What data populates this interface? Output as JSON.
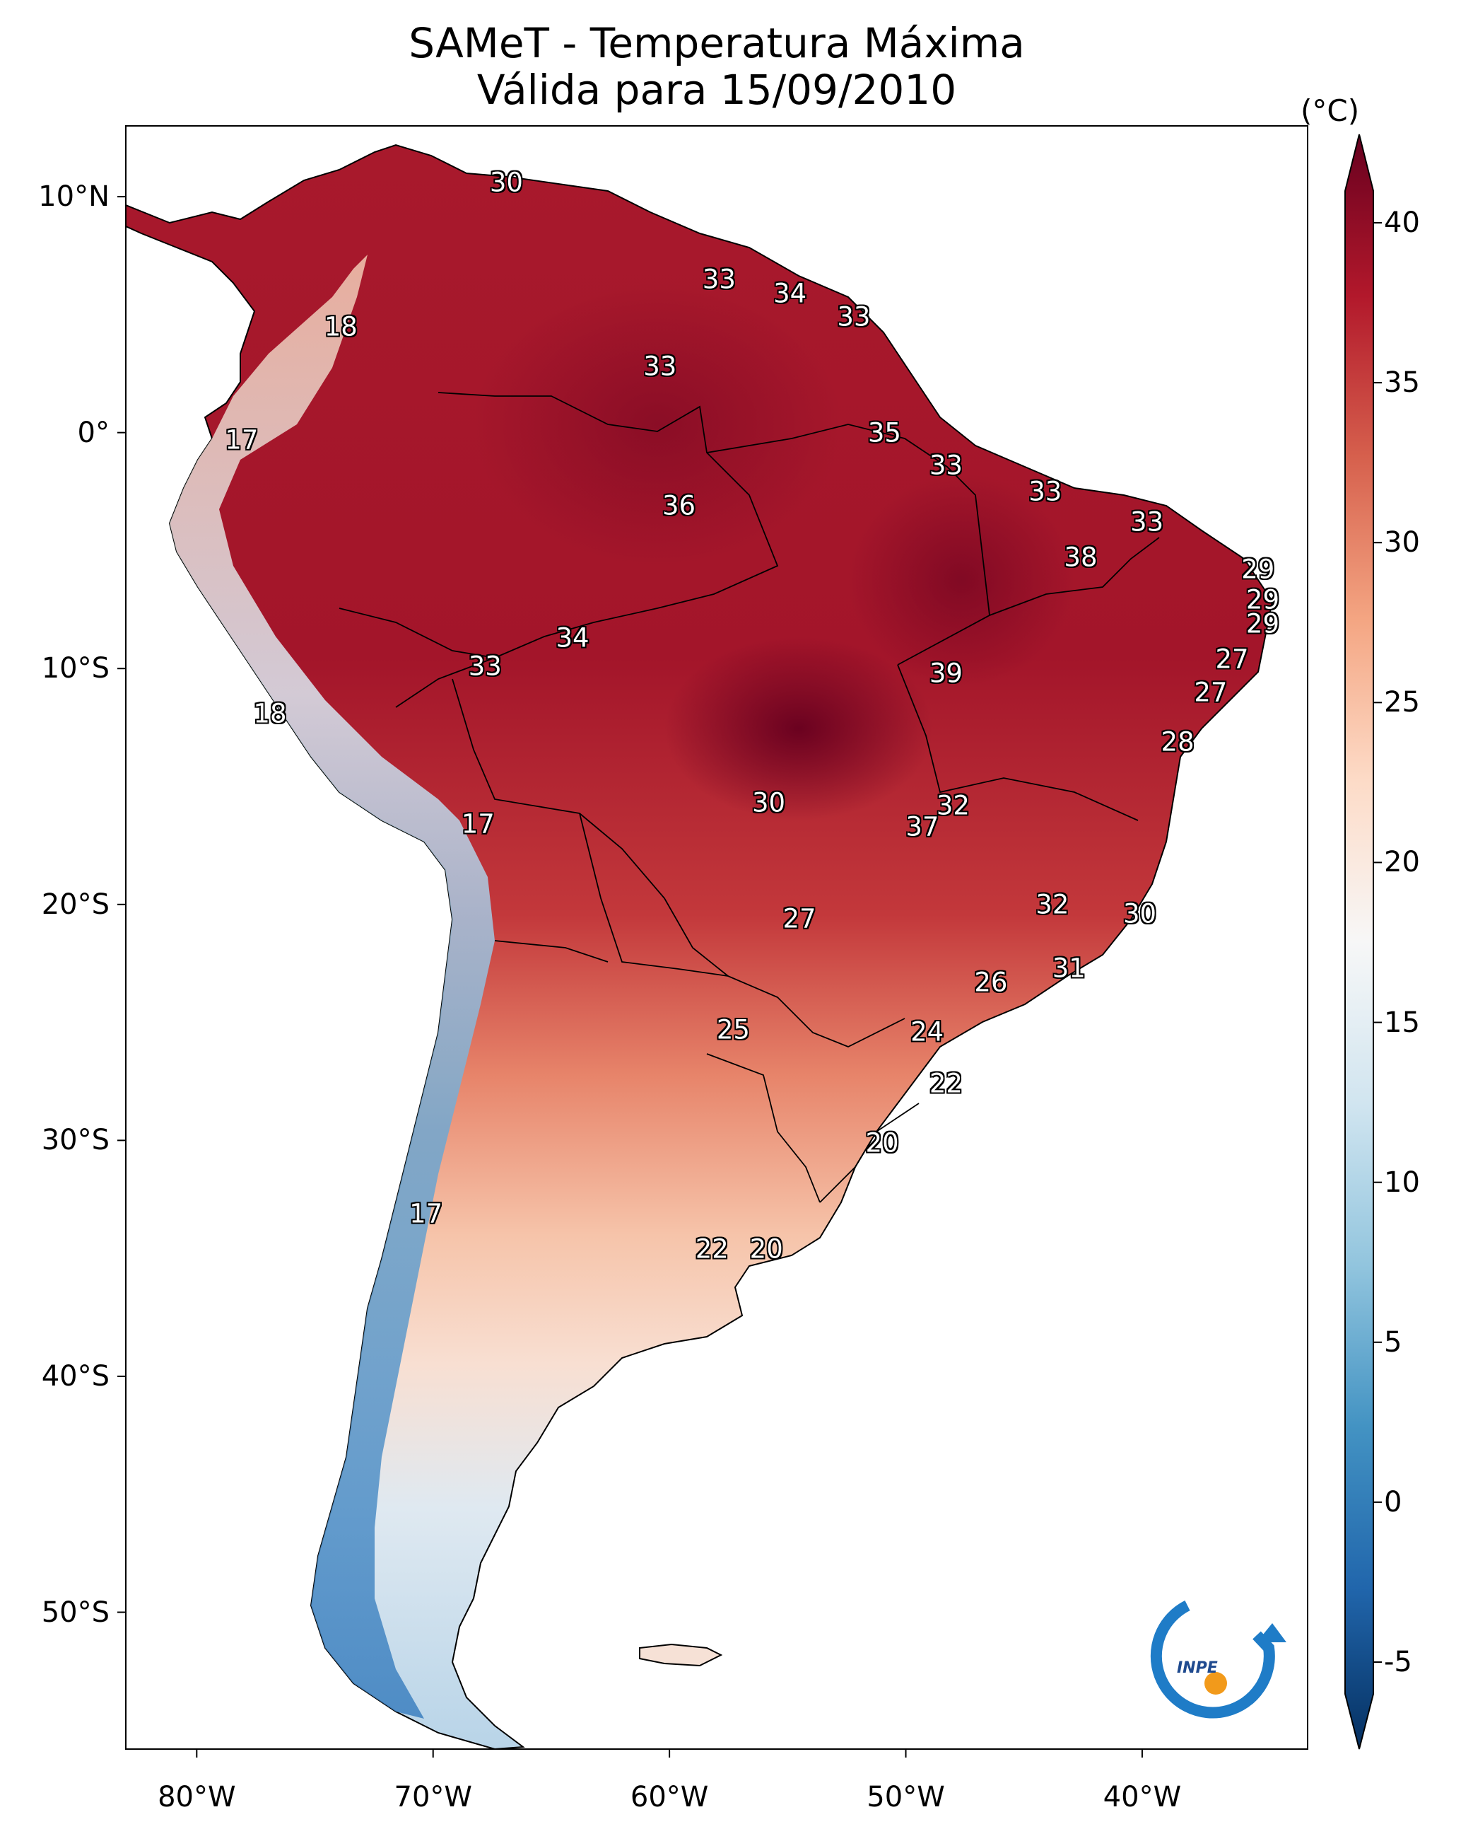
{
  "title": {
    "line1": "SAMeT - Temperatura Máxima",
    "line2": "Válida para 15/09/2010"
  },
  "lat_ticks": [
    {
      "value": 10,
      "label": "10°N"
    },
    {
      "value": 0,
      "label": "0°"
    },
    {
      "value": -10,
      "label": "10°S"
    },
    {
      "value": -20,
      "label": "20°S"
    },
    {
      "value": -30,
      "label": "30°S"
    },
    {
      "value": -40,
      "label": "40°S"
    },
    {
      "value": -50,
      "label": "50°S"
    }
  ],
  "lon_ticks": [
    {
      "value": -80,
      "label": "80°W"
    },
    {
      "value": -70,
      "label": "70°W"
    },
    {
      "value": -60,
      "label": "60°W"
    },
    {
      "value": -50,
      "label": "50°W"
    },
    {
      "value": -40,
      "label": "40°W"
    }
  ],
  "colorbar": {
    "unit": "(°C)",
    "min": -7,
    "max": 42,
    "ticks": [
      {
        "value": 40,
        "label": "40"
      },
      {
        "value": 35,
        "label": "35"
      },
      {
        "value": 30,
        "label": "30"
      },
      {
        "value": 25,
        "label": "25"
      },
      {
        "value": 20,
        "label": "20"
      },
      {
        "value": 15,
        "label": "15"
      },
      {
        "value": 10,
        "label": "10"
      },
      {
        "value": 5,
        "label": "5"
      },
      {
        "value": 0,
        "label": "0"
      },
      {
        "value": -5,
        "label": "-5"
      }
    ],
    "colors": [
      "#053061",
      "#2166ac",
      "#4393c3",
      "#92c5de",
      "#d1e5f0",
      "#f7f7f7",
      "#fddbc7",
      "#f4a582",
      "#d6604d",
      "#b2182b",
      "#67001f"
    ]
  },
  "temperature_labels": [
    {
      "text": "30",
      "lon": -66.9,
      "lat": 10.6
    },
    {
      "text": "33",
      "lon": -57.9,
      "lat": 6.5
    },
    {
      "text": "34",
      "lon": -54.9,
      "lat": 5.9
    },
    {
      "text": "33",
      "lon": -52.2,
      "lat": 4.9
    },
    {
      "text": "18",
      "lon": -73.9,
      "lat": 4.5
    },
    {
      "text": "33",
      "lon": -60.4,
      "lat": 2.8
    },
    {
      "text": "17",
      "lon": -78.1,
      "lat": -0.3
    },
    {
      "text": "35",
      "lon": -50.9,
      "lat": 0.0
    },
    {
      "text": "33",
      "lon": -48.3,
      "lat": -1.4
    },
    {
      "text": "33",
      "lon": -44.1,
      "lat": -2.5
    },
    {
      "text": "36",
      "lon": -59.6,
      "lat": -3.1
    },
    {
      "text": "33",
      "lon": -39.8,
      "lat": -3.8
    },
    {
      "text": "38",
      "lon": -42.6,
      "lat": -5.3
    },
    {
      "text": "29",
      "lon": -35.1,
      "lat": -5.8
    },
    {
      "text": "29",
      "lon": -34.9,
      "lat": -7.1
    },
    {
      "text": "29",
      "lon": -34.9,
      "lat": -8.1
    },
    {
      "text": "34",
      "lon": -64.1,
      "lat": -8.7
    },
    {
      "text": "33",
      "lon": -67.8,
      "lat": -9.9
    },
    {
      "text": "39",
      "lon": -48.3,
      "lat": -10.2
    },
    {
      "text": "27",
      "lon": -36.2,
      "lat": -9.6
    },
    {
      "text": "27",
      "lon": -37.1,
      "lat": -11.0
    },
    {
      "text": "18",
      "lon": -76.9,
      "lat": -11.9
    },
    {
      "text": "28",
      "lon": -38.5,
      "lat": -13.1
    },
    {
      "text": "30",
      "lon": -55.8,
      "lat": -15.7
    },
    {
      "text": "32",
      "lon": -48.0,
      "lat": -15.8
    },
    {
      "text": "17",
      "lon": -68.1,
      "lat": -16.6
    },
    {
      "text": "37",
      "lon": -49.3,
      "lat": -16.7
    },
    {
      "text": "32",
      "lon": -43.8,
      "lat": -20.0
    },
    {
      "text": "30",
      "lon": -40.1,
      "lat": -20.4
    },
    {
      "text": "27",
      "lon": -54.5,
      "lat": -20.6
    },
    {
      "text": "31",
      "lon": -43.1,
      "lat": -22.7
    },
    {
      "text": "26",
      "lon": -46.4,
      "lat": -23.3
    },
    {
      "text": "25",
      "lon": -57.3,
      "lat": -25.3
    },
    {
      "text": "24",
      "lon": -49.1,
      "lat": -25.4
    },
    {
      "text": "22",
      "lon": -48.3,
      "lat": -27.6
    },
    {
      "text": "20",
      "lon": -51.0,
      "lat": -30.1
    },
    {
      "text": "17",
      "lon": -70.3,
      "lat": -33.1
    },
    {
      "text": "22",
      "lon": -58.2,
      "lat": -34.6
    },
    {
      "text": "20",
      "lon": -55.9,
      "lat": -34.6
    }
  ],
  "logo": {
    "text": "INPE"
  }
}
